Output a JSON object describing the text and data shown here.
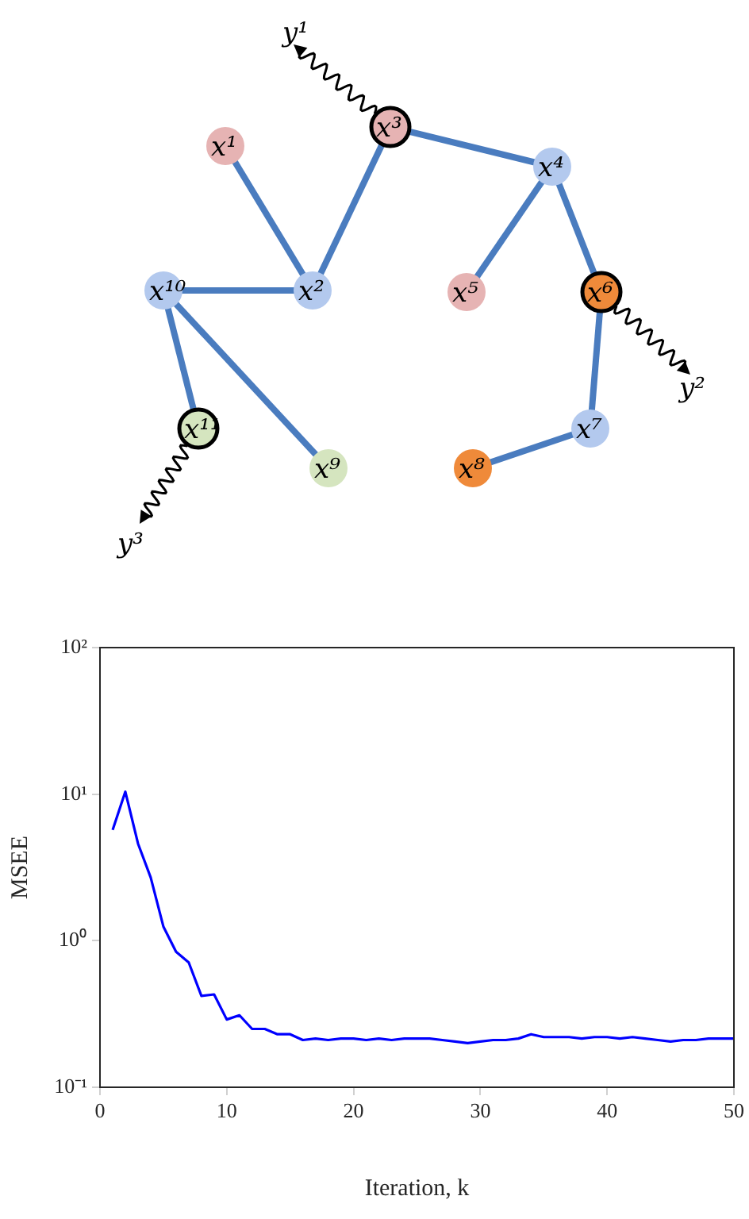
{
  "chart_data": [
    {
      "type": "other",
      "annotations": [
        "x¹",
        "x²",
        "x³",
        "x⁴",
        "x⁵",
        "x⁶",
        "x⁷",
        "x⁸",
        "x⁹",
        "x¹⁰",
        "x¹¹",
        "y¹",
        "y²",
        "y³"
      ]
    },
    {
      "type": "line",
      "xlabel": "Iteration, k",
      "ylabel": "MSEE",
      "log": "y",
      "grid": false,
      "legend": false,
      "marker": "none",
      "line_style": "solid",
      "x": [
        1,
        2,
        3,
        4,
        5,
        6,
        7,
        8,
        9,
        10,
        11,
        12,
        13,
        14,
        15,
        16,
        17,
        18,
        19,
        20,
        21,
        22,
        23,
        24,
        25,
        26,
        27,
        28,
        29,
        30,
        31,
        32,
        33,
        34,
        35,
        36,
        37,
        38,
        39,
        40,
        41,
        42,
        43,
        44,
        45,
        46,
        47,
        48,
        49,
        50
      ],
      "series": [
        {
          "color": "#0000ff",
          "values": [
            5.7,
            10.4,
            4.6,
            2.7,
            1.25,
            0.84,
            0.71,
            0.42,
            0.43,
            0.29,
            0.31,
            0.25,
            0.25,
            0.23,
            0.23,
            0.21,
            0.215,
            0.21,
            0.215,
            0.215,
            0.21,
            0.215,
            0.21,
            0.215,
            0.215,
            0.215,
            0.21,
            0.205,
            0.2,
            0.205,
            0.21,
            0.21,
            0.215,
            0.23,
            0.22,
            0.22,
            0.22,
            0.215,
            0.22,
            0.22,
            0.215,
            0.22,
            0.215,
            0.21,
            0.205,
            0.21,
            0.21,
            0.215,
            0.215,
            0.215
          ]
        }
      ],
      "xlim": [
        0,
        50
      ],
      "xticks": [
        0,
        10,
        20,
        30,
        40,
        50
      ],
      "ylim": [
        0.1,
        100
      ],
      "yticks": [
        {
          "value": 0.1,
          "label": "10⁻¹"
        },
        {
          "value": 1,
          "label": "10⁰"
        },
        {
          "value": 10,
          "label": "10¹"
        },
        {
          "value": 100,
          "label": "10²"
        }
      ]
    }
  ]
}
